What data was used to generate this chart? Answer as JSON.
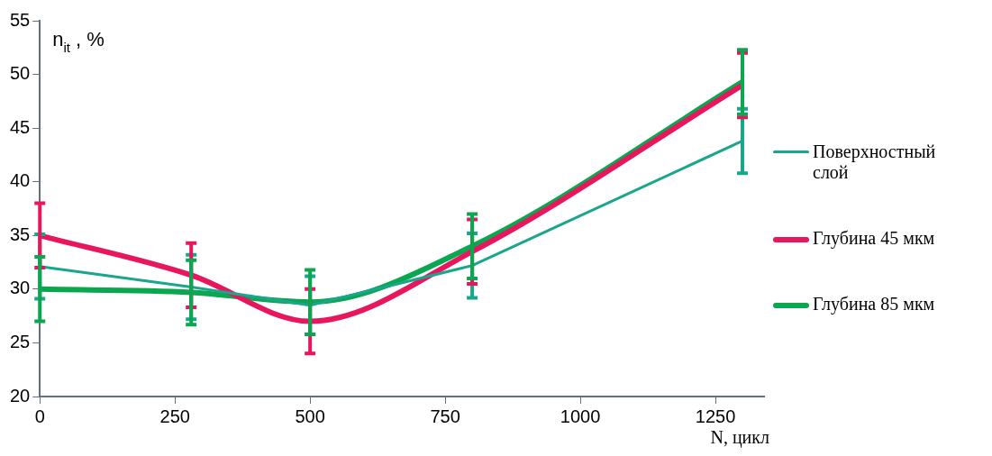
{
  "chart_data": {
    "type": "line",
    "ylabel": "n$_{it}$ , %",
    "xlabel": "N, цикл",
    "xlim": [
      0,
      1340
    ],
    "xticks": [
      0,
      250,
      500,
      750,
      1000,
      1250
    ],
    "ylim": [
      20,
      55
    ],
    "yticks": [
      20,
      25,
      30,
      35,
      40,
      45,
      50,
      55
    ],
    "grid": false,
    "legend": "right",
    "series": [
      {
        "name": "Поверхностный слой",
        "color": "#1aa68c",
        "x": [
          0,
          280,
          500,
          800,
          1300
        ],
        "values": [
          32.1,
          30.2,
          28.5,
          32.2,
          43.8
        ],
        "errors": [
          3,
          3,
          2.7,
          3,
          3
        ]
      },
      {
        "name": "Глубина 45 мкм",
        "color": "#e8175d",
        "x": [
          0,
          280,
          500,
          800,
          1300
        ],
        "values": [
          35,
          31.3,
          27,
          33.5,
          49
        ],
        "errors": [
          3,
          3,
          3,
          3,
          3
        ]
      },
      {
        "name": "Глубина 85 мкм",
        "color": "#0aa650",
        "x": [
          0,
          280,
          500,
          800,
          1300
        ],
        "values": [
          30,
          29.7,
          28.8,
          34,
          49.3
        ],
        "errors": [
          3,
          3,
          3,
          3,
          3
        ]
      }
    ]
  }
}
